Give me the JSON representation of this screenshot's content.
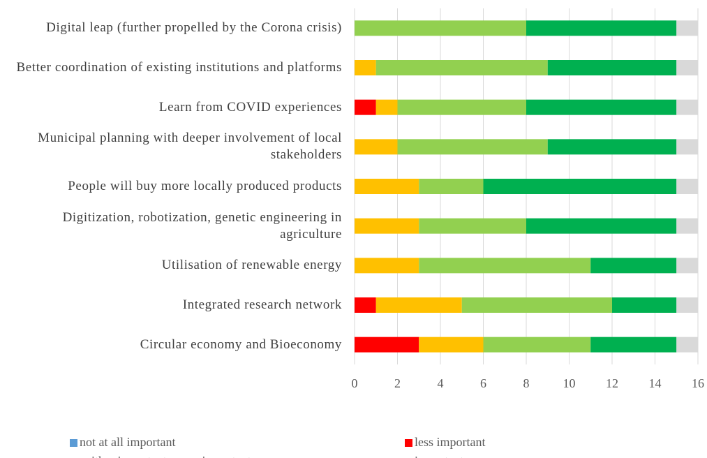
{
  "chart_data": {
    "type": "stacked-bar-horizontal",
    "categories": [
      "Digital leap (further propelled by the Corona crisis)",
      "Better coordination of existing institutions and platforms",
      "Learn from COVID experiences",
      "Municipal planning with deeper involvement of local stakeholders",
      "People will buy more locally produced products",
      "Digitization, robotization, genetic engineering in agriculture",
      "Utilisation of renewable energy",
      "Integrated research network",
      "Circular economy and Bioeconomy"
    ],
    "series": [
      {
        "name": "not at all important",
        "color": "#5b9bd5",
        "values": [
          0,
          0,
          0,
          0,
          0,
          0,
          0,
          0,
          0
        ]
      },
      {
        "name": "less important",
        "color": "#ff0000",
        "values": [
          0,
          0,
          1,
          0,
          0,
          0,
          0,
          1,
          3
        ]
      },
      {
        "name": "neither important nor unimportant",
        "color": "#ffc000",
        "values": [
          0,
          1,
          1,
          2,
          3,
          3,
          3,
          4,
          3
        ]
      },
      {
        "name": "important",
        "color": "#92d050",
        "values": [
          8,
          8,
          6,
          7,
          3,
          5,
          8,
          7,
          5
        ]
      },
      {
        "color": "#00b050",
        "values": [
          7,
          6,
          7,
          6,
          9,
          7,
          4,
          3,
          4
        ]
      },
      {
        "color": "#d9d9d9",
        "values": [
          1,
          1,
          1,
          1,
          1,
          1,
          1,
          1,
          1
        ]
      }
    ],
    "xlim": [
      0,
      16
    ],
    "xticks": [
      0,
      2,
      4,
      6,
      8,
      10,
      12,
      14,
      16
    ],
    "grid": true
  }
}
